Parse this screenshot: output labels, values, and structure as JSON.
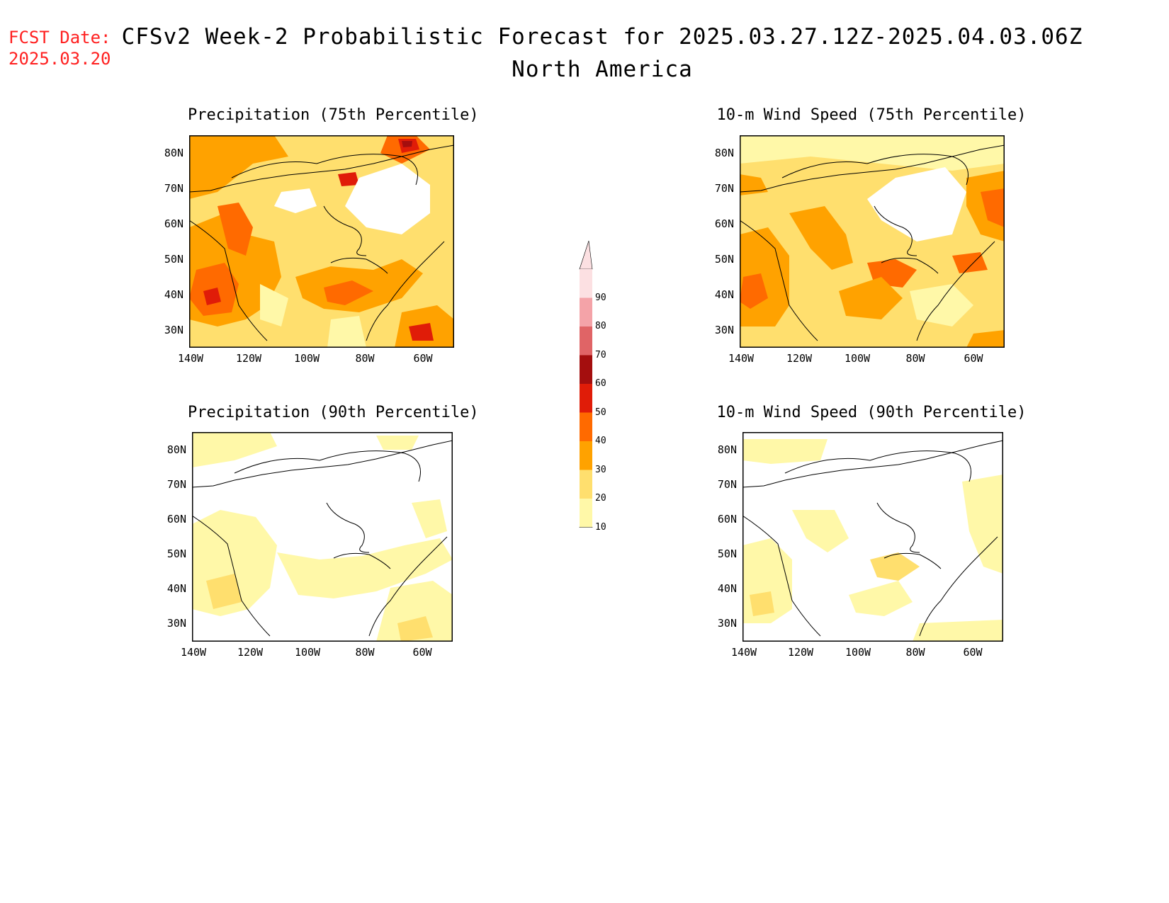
{
  "fcst": {
    "line1": "FCST Date:",
    "line2": "2025.03.20"
  },
  "title": {
    "main": "CFSv2 Week-2 Probabilistic Forecast for 2025.03.27.12Z-2025.04.03.06Z",
    "sub": "North America"
  },
  "axes": {
    "lat_labels": [
      "80N",
      "70N",
      "60N",
      "50N",
      "40N",
      "30N"
    ],
    "lon_labels": [
      "140W",
      "120W",
      "100W",
      "80W",
      "60W"
    ]
  },
  "panels": [
    {
      "title": "Precipitation (75th Percentile)"
    },
    {
      "title": "10-m Wind Speed (75th Percentile)"
    },
    {
      "title": "Precipitation (90th Percentile)"
    },
    {
      "title": "10-m Wind Speed (90th Percentile)"
    }
  ],
  "colorbar": {
    "labels": [
      "90",
      "80",
      "70",
      "60",
      "50",
      "40",
      "30",
      "20",
      "10"
    ],
    "colors": [
      "#fce0e2",
      "#f4a3a8",
      "#e06466",
      "#a40e0e",
      "#e01c08",
      "#ff6a00",
      "#ffa200",
      "#ffdf6e",
      "#fff8a8"
    ]
  }
}
